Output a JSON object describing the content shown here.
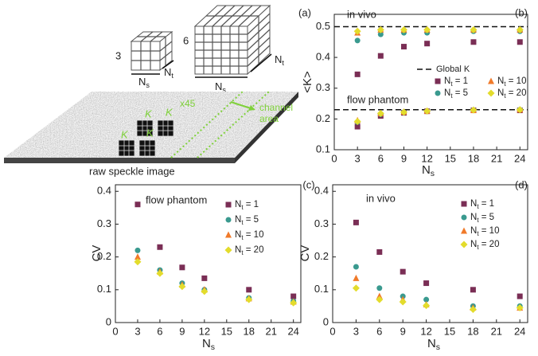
{
  "diagram": {
    "panel_label": "(a)",
    "cube_labels": [
      "3",
      "6"
    ],
    "dimension_labels": [
      "Ns",
      "Nt",
      "Ns",
      "Nt"
    ],
    "speckle_labels": [
      "K",
      "K",
      "K",
      "K"
    ],
    "repeat_label": "x45",
    "channel_label": [
      "channel",
      "area"
    ],
    "image_label": "raw speckle image"
  },
  "chart_data": [
    {
      "type": "scatter",
      "panel_label": "(b)",
      "x_label": "Ns",
      "y_label": "<K>",
      "xlim": [
        0,
        25
      ],
      "ylim": [
        0.1,
        0.54
      ],
      "xticks": [
        0,
        3,
        6,
        9,
        12,
        15,
        18,
        21,
        24
      ],
      "yticks": [
        0.1,
        0.2,
        0.3,
        0.4,
        0.5
      ],
      "annotations": [
        "in vivo",
        "flow phantom"
      ],
      "reference_lines": [
        {
          "name": "Global K",
          "y": 0.5
        },
        {
          "y": 0.23
        }
      ],
      "x": [
        3,
        6,
        9,
        12,
        18,
        24
      ],
      "series": [
        {
          "name": "Nt = 1",
          "color": "#7a2e55",
          "marker": "square",
          "values": [
            0.345,
            0.405,
            0.435,
            0.445,
            0.45,
            0.45
          ]
        },
        {
          "name": "Nt = 5",
          "color": "#3a9a8f",
          "marker": "circle",
          "values": [
            0.455,
            0.475,
            0.48,
            0.48,
            0.485,
            0.485
          ]
        },
        {
          "name": "Nt = 10",
          "color": "#f07a2a",
          "marker": "triangle",
          "values": [
            0.48,
            0.49,
            0.49,
            0.49,
            0.49,
            0.49
          ]
        },
        {
          "name": "Nt = 20",
          "color": "#e3dc2c",
          "marker": "diamond",
          "values": [
            0.485,
            0.49,
            0.49,
            0.49,
            0.49,
            0.49
          ]
        },
        {
          "name": "Nt = 1",
          "color": "#7a2e55",
          "marker": "square",
          "values": [
            0.175,
            0.21,
            0.22,
            0.225,
            0.228,
            0.228
          ]
        },
        {
          "name": "Nt = 5",
          "color": "#3a9a8f",
          "marker": "circle",
          "values": [
            0.19,
            0.215,
            0.222,
            0.225,
            0.228,
            0.23
          ]
        },
        {
          "name": "Nt = 10",
          "color": "#f07a2a",
          "marker": "triangle",
          "values": [
            0.195,
            0.218,
            0.223,
            0.226,
            0.228,
            0.23
          ]
        },
        {
          "name": "Nt = 20",
          "color": "#e3dc2c",
          "marker": "diamond",
          "values": [
            0.192,
            0.218,
            0.222,
            0.226,
            0.229,
            0.23
          ]
        }
      ]
    },
    {
      "type": "scatter",
      "panel_label": "(c)",
      "x_label": "Ns",
      "y_label": "CV",
      "xlim": [
        0,
        25
      ],
      "ylim": [
        0,
        0.42
      ],
      "xticks": [
        0,
        3,
        6,
        9,
        12,
        15,
        18,
        21,
        24
      ],
      "yticks": [
        0,
        0.1,
        0.2,
        0.3,
        0.4
      ],
      "annotations": [
        "flow phantom"
      ],
      "x": [
        3,
        6,
        9,
        12,
        18,
        24
      ],
      "series": [
        {
          "name": "Nt = 1",
          "color": "#7a2e55",
          "marker": "square",
          "values": [
            0.36,
            0.23,
            0.168,
            0.135,
            0.1,
            0.08
          ]
        },
        {
          "name": "Nt = 5",
          "color": "#3a9a8f",
          "marker": "circle",
          "values": [
            0.22,
            0.16,
            0.12,
            0.1,
            0.075,
            0.065
          ]
        },
        {
          "name": "Nt = 10",
          "color": "#f07a2a",
          "marker": "triangle",
          "values": [
            0.2,
            0.155,
            0.115,
            0.1,
            0.073,
            0.063
          ]
        },
        {
          "name": "Nt = 20",
          "color": "#e3dc2c",
          "marker": "diamond",
          "values": [
            0.185,
            0.15,
            0.11,
            0.095,
            0.07,
            0.06
          ]
        }
      ]
    },
    {
      "type": "scatter",
      "panel_label": "(d)",
      "x_label": "Ns",
      "y_label": "CV",
      "xlim": [
        0,
        25
      ],
      "ylim": [
        0,
        0.42
      ],
      "xticks": [
        0,
        3,
        6,
        9,
        12,
        15,
        18,
        21,
        24
      ],
      "yticks": [
        0,
        0.1,
        0.2,
        0.3,
        0.4
      ],
      "annotations": [
        "in vivo"
      ],
      "x": [
        3,
        6,
        9,
        12,
        18,
        24
      ],
      "series": [
        {
          "name": "Nt = 1",
          "color": "#7a2e55",
          "marker": "square",
          "values": [
            0.305,
            0.215,
            0.155,
            0.12,
            0.1,
            0.08
          ]
        },
        {
          "name": "Nt = 5",
          "color": "#3a9a8f",
          "marker": "circle",
          "values": [
            0.17,
            0.105,
            0.08,
            0.07,
            0.05,
            0.05
          ]
        },
        {
          "name": "Nt = 10",
          "color": "#f07a2a",
          "marker": "triangle",
          "values": [
            0.135,
            0.08,
            0.07,
            0.055,
            0.045,
            0.045
          ]
        },
        {
          "name": "Nt = 20",
          "color": "#e3dc2c",
          "marker": "diamond",
          "values": [
            0.105,
            0.07,
            0.063,
            0.052,
            0.04,
            0.045
          ]
        }
      ]
    }
  ]
}
